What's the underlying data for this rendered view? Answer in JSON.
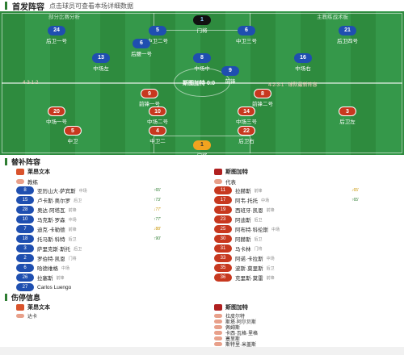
{
  "page": {
    "title": "首发阵容",
    "subtitle": "点击球员可查看本场详细数据"
  },
  "pitch": {
    "home_label": "部分比赛分析",
    "away_label": "主教练战术板",
    "away_formation": "4-2-3-1",
    "home_formation": "4-3-1-2",
    "score_text": "斯图加特 0:0",
    "left_note": "4-3-1-2",
    "right_note": "4-2-3-1 · 球队最新阵容"
  },
  "home_players": [
    {
      "num": "1",
      "name": "门将",
      "rating": "7.1",
      "kind": "gk-blue"
    },
    {
      "num": "24",
      "name": "后卫一号",
      "rating": "6.5",
      "kind": "blue"
    },
    {
      "num": "5",
      "name": "中卫二号",
      "rating": "6.8",
      "kind": "blue"
    },
    {
      "num": "6",
      "name": "中卫三号",
      "rating": "7.0",
      "kind": "blue"
    },
    {
      "num": "21",
      "name": "后卫四号",
      "rating": "6.6",
      "kind": "blue"
    },
    {
      "num": "6",
      "name": "后腰一号",
      "rating": "6.9",
      "kind": "blue"
    },
    {
      "num": "13",
      "name": "中场左",
      "rating": "6.7",
      "kind": "blue"
    },
    {
      "num": "8",
      "name": "中场中",
      "rating": "7.2",
      "kind": "blue"
    },
    {
      "num": "16",
      "name": "中场右",
      "rating": "6.4",
      "kind": "blue"
    },
    {
      "num": "9",
      "name": "前锋",
      "rating": "6.8",
      "kind": "blue"
    },
    {
      "num": "4",
      "name": "前锋二",
      "rating": "6.3",
      "kind": "red"
    }
  ],
  "away_players": [
    {
      "num": "9",
      "name": "前锋一号",
      "rating": "6.9",
      "kind": "red"
    },
    {
      "num": "8",
      "name": "前锋二号",
      "rating": "7.0",
      "kind": "red"
    },
    {
      "num": "20",
      "name": "中场一号",
      "rating": "6.6",
      "kind": "red"
    },
    {
      "num": "10",
      "name": "中场二号",
      "rating": "7.3",
      "kind": "red"
    },
    {
      "num": "14",
      "name": "中场三号",
      "rating": "6.5",
      "kind": "red"
    },
    {
      "num": "3",
      "name": "后卫左",
      "rating": "6.7",
      "kind": "red"
    },
    {
      "num": "5",
      "name": "中卫",
      "rating": "6.8",
      "kind": "red"
    },
    {
      "num": "4",
      "name": "中卫二",
      "rating": "6.6",
      "kind": "red"
    },
    {
      "num": "22",
      "name": "后卫右",
      "rating": "6.4",
      "kind": "red"
    },
    {
      "num": "1",
      "name": "门将",
      "rating": "7.0",
      "kind": "gk-red"
    }
  ],
  "subs": {
    "title": "替补阵容",
    "home_team": "莱昂文本",
    "away_team": "斯图加特",
    "home_coach": "教练",
    "away_coach": "代表",
    "home": [
      {
        "num": "8",
        "name": "亚历山大·萨宾斯",
        "pos": "中场",
        "time": "↑65'"
      },
      {
        "num": "15",
        "name": "卢卡斯·奥尔罗",
        "pos": "后卫",
        "time": "↑73'"
      },
      {
        "num": "28",
        "name": "奥达·阿塔瓦",
        "pos": "前锋",
        "time": "↓77'"
      },
      {
        "num": "10",
        "name": "马克斯·罗森",
        "pos": "中场",
        "time": "↑77'"
      },
      {
        "num": "7",
        "name": "迪克·卡勒德",
        "pos": "前锋",
        "time": "↓88'"
      },
      {
        "num": "18",
        "name": "托马斯·科特",
        "pos": "后卫",
        "time": "↑90'"
      },
      {
        "num": "3",
        "name": "萨里克斯·斯托",
        "pos": "后卫",
        "time": ""
      },
      {
        "num": "2",
        "name": "罗伯特·凯恩",
        "pos": "门将",
        "time": ""
      },
      {
        "num": "6",
        "name": "哈德维格",
        "pos": "中场",
        "time": ""
      },
      {
        "num": "26",
        "name": "拉塞斯",
        "pos": "前锋",
        "time": ""
      },
      {
        "num": "27",
        "name": "Carlos Luengo",
        "pos": "",
        "time": ""
      }
    ],
    "away": [
      {
        "num": "11",
        "name": "拉赫斯",
        "pos": "前锋",
        "time": "↓65'"
      },
      {
        "num": "17",
        "name": "阿韦·托托",
        "pos": "中场",
        "time": "↑65'"
      },
      {
        "num": "19",
        "name": "西班牙·凯恩",
        "pos": "前锋",
        "time": ""
      },
      {
        "num": "23",
        "name": "阿迪斯",
        "pos": "后卫",
        "time": ""
      },
      {
        "num": "25",
        "name": "阿布特·科伦斯",
        "pos": "中场",
        "time": ""
      },
      {
        "num": "30",
        "name": "阿赫斯",
        "pos": "后卫",
        "time": ""
      },
      {
        "num": "31",
        "name": "马卡林",
        "pos": "门将",
        "time": ""
      },
      {
        "num": "33",
        "name": "阿诺·卡拉斯",
        "pos": "中场",
        "time": ""
      },
      {
        "num": "35",
        "name": "波斯·莫里斯",
        "pos": "后卫",
        "time": ""
      },
      {
        "num": "36",
        "name": "克里斯·莫雷",
        "pos": "前锋",
        "time": ""
      }
    ]
  },
  "staff": {
    "title": "伤停信息",
    "home_team": "莱昂文本",
    "away_team": "斯图加特",
    "home": [
      {
        "name": "达卡"
      }
    ],
    "away": [
      {
        "name": "拉皮尔特"
      },
      {
        "name": "斯塔·阿尔贝斯"
      },
      {
        "name": "佩姆斯"
      },
      {
        "name": "卡西·瓦格·里格"
      },
      {
        "name": "塞里斯"
      },
      {
        "name": "斯特里·米盖斯"
      }
    ]
  }
}
